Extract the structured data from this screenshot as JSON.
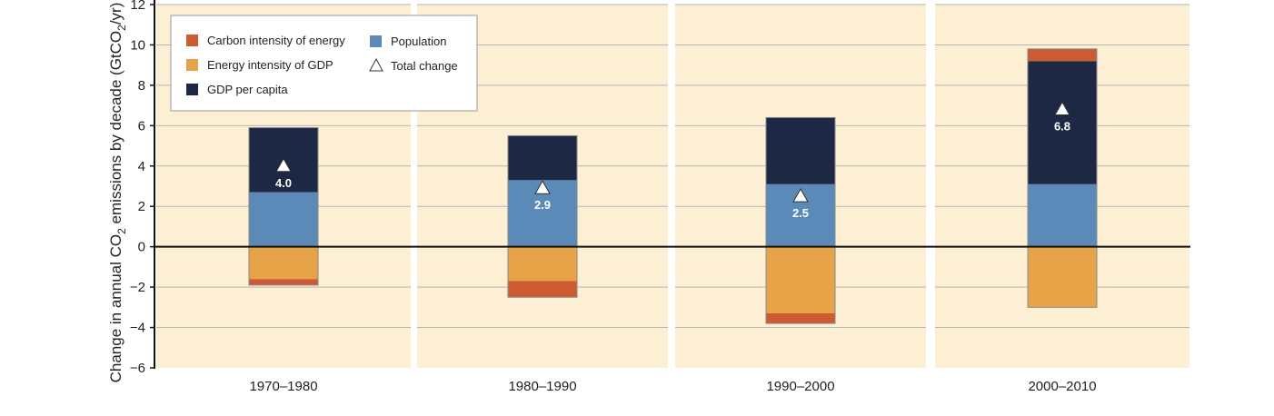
{
  "chart_data": {
    "type": "bar",
    "stacked": true,
    "ylabel": {
      "prefix": "Change in annual CO",
      "sub": "2",
      "middle": " emissions by decade (GtCO",
      "sub2": "2",
      "suffix": "/yr)"
    },
    "ylim": [
      -6,
      12
    ],
    "yticks": [
      "12",
      "10",
      "8",
      "6",
      "4",
      "2",
      "0",
      "−2",
      "−4",
      "−6"
    ],
    "ytick_values": [
      12,
      10,
      8,
      6,
      4,
      2,
      0,
      -2,
      -4,
      -6
    ],
    "grid": true,
    "legend_position": "top-left",
    "categories": [
      "1970–1980",
      "1980–1990",
      "1990–2000",
      "2000–2010"
    ],
    "series": [
      {
        "name": "Carbon intensity of energy",
        "color": "#cc5a32",
        "values": [
          -0.3,
          -0.8,
          -0.5,
          0.6
        ]
      },
      {
        "name": "Energy intensity of GDP",
        "color": "#e6a347",
        "values": [
          -1.6,
          -1.7,
          -3.3,
          -3.0
        ]
      },
      {
        "name": "GDP per capita",
        "color": "#1c2844",
        "values": [
          3.2,
          2.2,
          3.3,
          6.1
        ]
      },
      {
        "name": "Population",
        "color": "#5b89b8",
        "values": [
          2.7,
          3.3,
          3.1,
          3.1
        ]
      }
    ],
    "total_change": {
      "name": "Total change",
      "values": [
        4.0,
        2.9,
        2.5,
        6.8
      ],
      "labels": [
        "4.0",
        "2.9",
        "2.5",
        "6.8"
      ]
    },
    "panel_background": "#fcefd4",
    "gridline_color": "#b5b5b5"
  }
}
